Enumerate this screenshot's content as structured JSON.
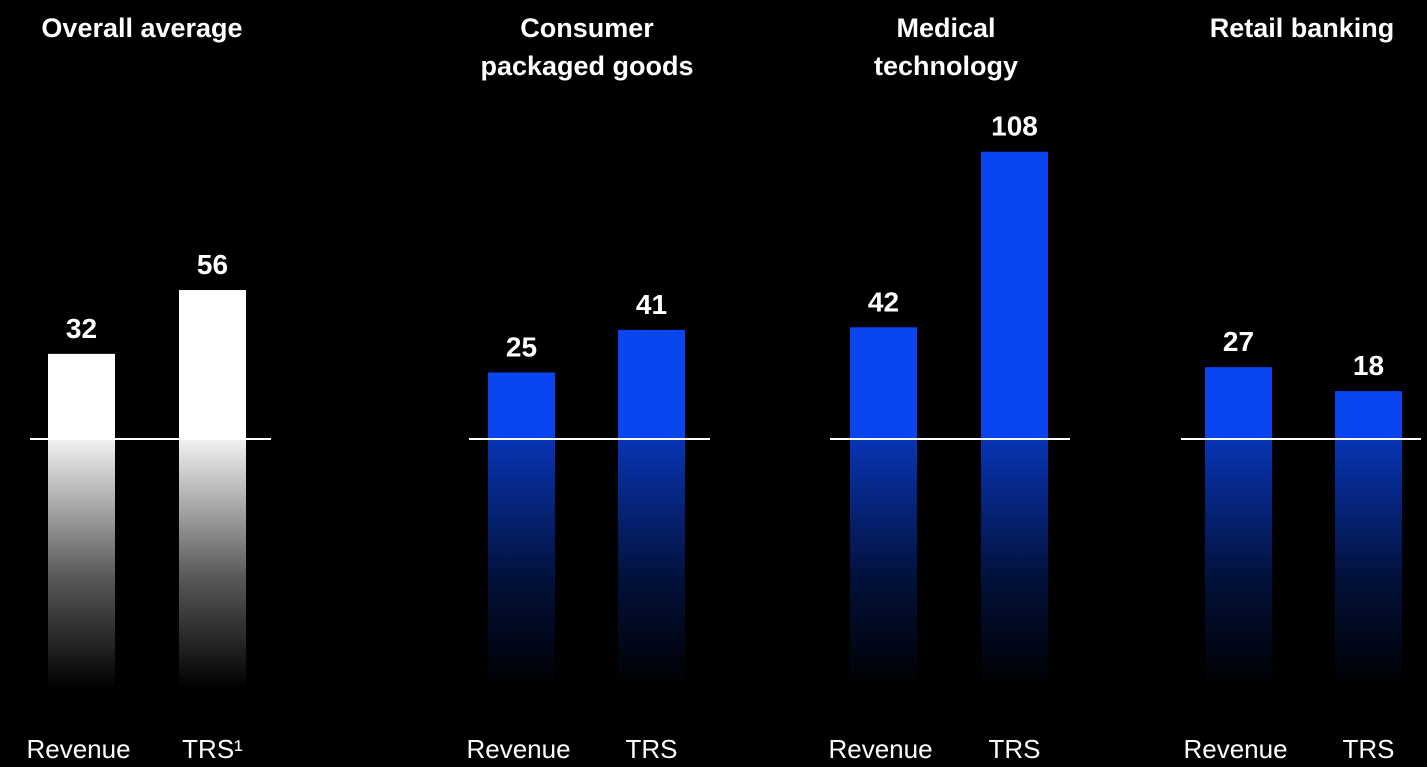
{
  "chart_data": [
    {
      "type": "bar",
      "title": "Overall average",
      "categories": [
        "Revenue",
        "TRS¹"
      ],
      "values": [
        32,
        56
      ],
      "color": "#ffffff"
    },
    {
      "type": "bar",
      "title": "Consumer packaged goods",
      "categories": [
        "Revenue",
        "TRS"
      ],
      "values": [
        25,
        41
      ],
      "color": "#0a46f0"
    },
    {
      "type": "bar",
      "title": "Medical technology",
      "categories": [
        "Revenue",
        "TRS"
      ],
      "values": [
        42,
        108
      ],
      "color": "#0a46f0"
    },
    {
      "type": "bar",
      "title": "Retail banking",
      "categories": [
        "Revenue",
        "TRS"
      ],
      "values": [
        27,
        18
      ],
      "color": "#0a46f0"
    }
  ],
  "colors": {
    "background": "#000000",
    "text": "#ffffff",
    "baseline": "#ffffff",
    "accent": "#0a46f0",
    "overall": "#ffffff"
  }
}
